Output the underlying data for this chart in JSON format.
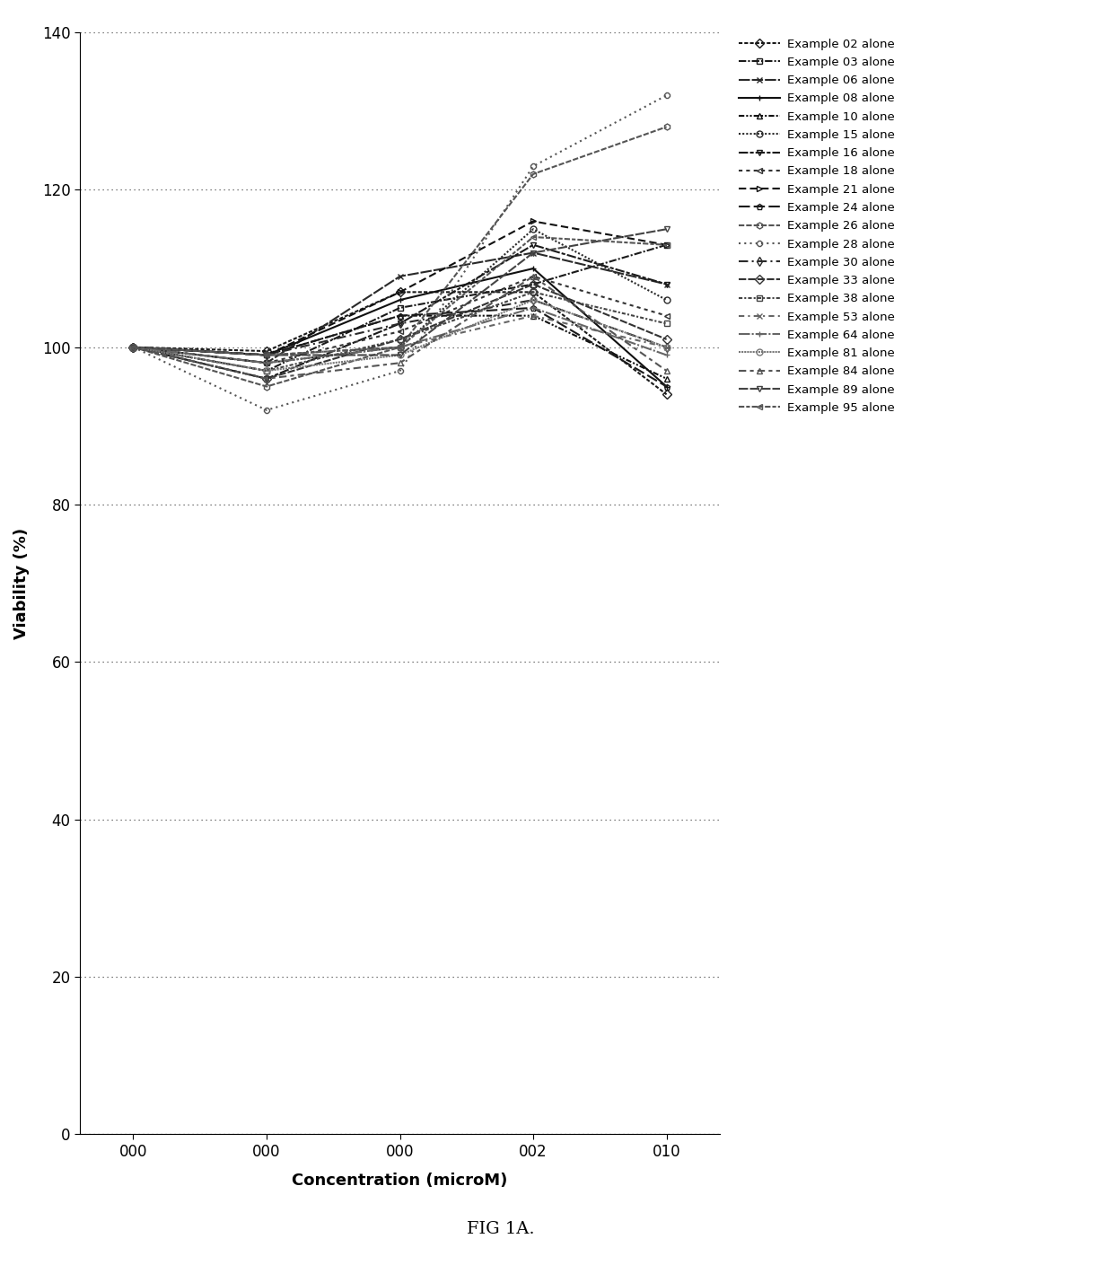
{
  "x_labels": [
    "000",
    "000",
    "000",
    "002",
    "010"
  ],
  "x_values": [
    0,
    1,
    2,
    3,
    4
  ],
  "fig_title": "FIG 1A.",
  "xlabel": "Concentration (microM)",
  "ylabel": "Viability (%)",
  "ylim": [
    0,
    140
  ],
  "yticks": [
    0,
    20,
    40,
    60,
    80,
    100,
    120,
    140
  ],
  "series": [
    {
      "label": "Example 02 alone",
      "y": [
        100,
        99.5,
        107,
        107,
        94
      ]
    },
    {
      "label": "Example 03 alone",
      "y": [
        100,
        97,
        105,
        108,
        113
      ]
    },
    {
      "label": "Example 06 alone",
      "y": [
        100,
        98,
        109,
        112,
        108
      ]
    },
    {
      "label": "Example 08 alone",
      "y": [
        100,
        99,
        106,
        110,
        95
      ]
    },
    {
      "label": "Example 10 alone",
      "y": [
        100,
        99,
        104,
        104,
        96
      ]
    },
    {
      "label": "Example 15 alone",
      "y": [
        100,
        98,
        100,
        115,
        106
      ]
    },
    {
      "label": "Example 16 alone",
      "y": [
        100,
        96,
        103,
        113,
        108
      ]
    },
    {
      "label": "Example 18 alone",
      "y": [
        100,
        98,
        102,
        109,
        104
      ]
    },
    {
      "label": "Example 21 alone",
      "y": [
        100,
        99,
        107,
        116,
        113
      ]
    },
    {
      "label": "Example 24 alone",
      "y": [
        100,
        99,
        104,
        105,
        95
      ]
    },
    {
      "label": "Example 26 alone",
      "y": [
        100,
        95,
        100,
        122,
        128
      ]
    },
    {
      "label": "Example 28 alone",
      "y": [
        100,
        92,
        97,
        123,
        132
      ]
    },
    {
      "label": "Example 30 alone",
      "y": [
        100,
        99,
        103,
        106,
        100
      ]
    },
    {
      "label": "Example 33 alone",
      "y": [
        100,
        96,
        101,
        108,
        101
      ]
    },
    {
      "label": "Example 38 alone",
      "y": [
        100,
        97,
        101,
        107,
        103
      ]
    },
    {
      "label": "Example 53 alone",
      "y": [
        100,
        99,
        100,
        104,
        100
      ]
    },
    {
      "label": "Example 64 alone",
      "y": [
        100,
        98,
        100,
        105,
        99
      ]
    },
    {
      "label": "Example 81 alone",
      "y": [
        100,
        97,
        99,
        106,
        100
      ]
    },
    {
      "label": "Example 84 alone",
      "y": [
        100,
        96,
        98,
        109,
        97
      ]
    },
    {
      "label": "Example 89 alone",
      "y": [
        100,
        99,
        99,
        112,
        115
      ]
    },
    {
      "label": "Example 95 alone",
      "y": [
        100,
        99,
        100,
        114,
        113
      ]
    }
  ],
  "linestyles": [
    [
      0,
      [
        2,
        1
      ]
    ],
    [
      0,
      [
        4,
        1,
        1,
        1
      ]
    ],
    [
      0,
      [
        6,
        1
      ]
    ],
    "-",
    [
      0,
      [
        3,
        1,
        1,
        1,
        1,
        1
      ]
    ],
    [
      0,
      [
        1,
        1
      ]
    ],
    [
      0,
      [
        5,
        1,
        2,
        1
      ]
    ],
    [
      0,
      [
        2,
        2
      ]
    ],
    [
      0,
      [
        4,
        2
      ]
    ],
    [
      0,
      [
        6,
        2
      ]
    ],
    [
      0,
      [
        3,
        1
      ]
    ],
    [
      0,
      [
        1,
        2
      ]
    ],
    [
      0,
      [
        5,
        2,
        1,
        2
      ]
    ],
    [
      0,
      [
        4,
        1
      ]
    ],
    [
      0,
      [
        2,
        1,
        1,
        1
      ]
    ],
    [
      0,
      [
        3,
        2,
        1,
        2
      ]
    ],
    [
      0,
      [
        6,
        1,
        1,
        1
      ]
    ],
    [
      0,
      [
        1,
        0.5
      ]
    ],
    [
      0,
      [
        4,
        2,
        2,
        2
      ]
    ],
    [
      0,
      [
        5,
        1
      ]
    ],
    [
      0,
      [
        3,
        1,
        2,
        1
      ]
    ]
  ],
  "markers": [
    "D",
    "s",
    "x",
    "+",
    "^",
    "o",
    "v",
    "<",
    ">",
    "p",
    "h",
    "8",
    "d",
    "D",
    "s",
    "x",
    "+",
    "o",
    "^",
    "v",
    "<"
  ],
  "colors": [
    "#1a1a1a",
    "#1a1a1a",
    "#2a2a2a",
    "#111111",
    "#111111",
    "#2a2a2a",
    "#1a1a1a",
    "#333333",
    "#111111",
    "#1a1a1a",
    "#555555",
    "#555555",
    "#2a2a2a",
    "#333333",
    "#444444",
    "#666666",
    "#666666",
    "#777777",
    "#555555",
    "#444444",
    "#555555"
  ]
}
